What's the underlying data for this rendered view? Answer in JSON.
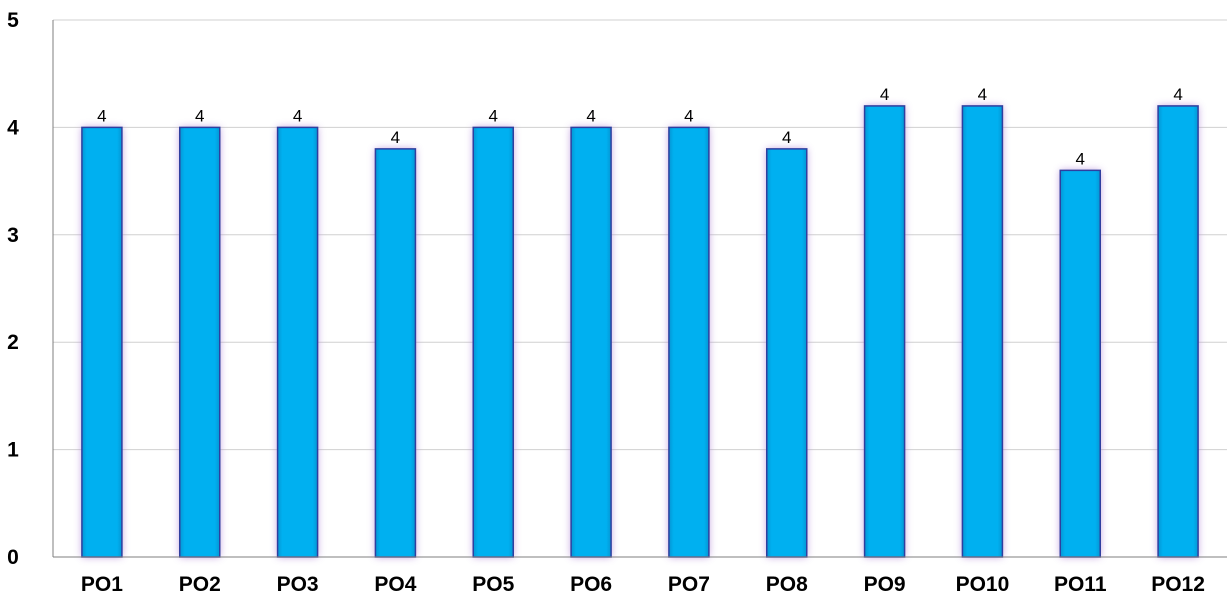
{
  "chart_data": {
    "type": "bar",
    "title": "",
    "xlabel": "",
    "ylabel": "",
    "categories": [
      "PO1",
      "PO2",
      "PO3",
      "PO4",
      "PO5",
      "PO6",
      "PO7",
      "PO8",
      "PO9",
      "PO10",
      "PO11",
      "PO12"
    ],
    "values": [
      4.0,
      4.0,
      4.0,
      3.8,
      4.0,
      4.0,
      4.0,
      3.8,
      4.2,
      4.2,
      3.6,
      4.2
    ],
    "data_labels": [
      "4",
      "4",
      "4",
      "4",
      "4",
      "4",
      "4",
      "4",
      "4",
      "4",
      "4",
      "4"
    ],
    "ylim": [
      0,
      5
    ],
    "yticks": [
      "0",
      "1",
      "2",
      "3",
      "4",
      "5"
    ],
    "grid": true,
    "legend": "none",
    "colors": {
      "bar_fill": "#00b0f0",
      "bar_edge": "#2f3f9f",
      "bar_glow": "#b48ad8",
      "gridline": "#d0d0d0",
      "axis": "#7f7f7f"
    }
  }
}
